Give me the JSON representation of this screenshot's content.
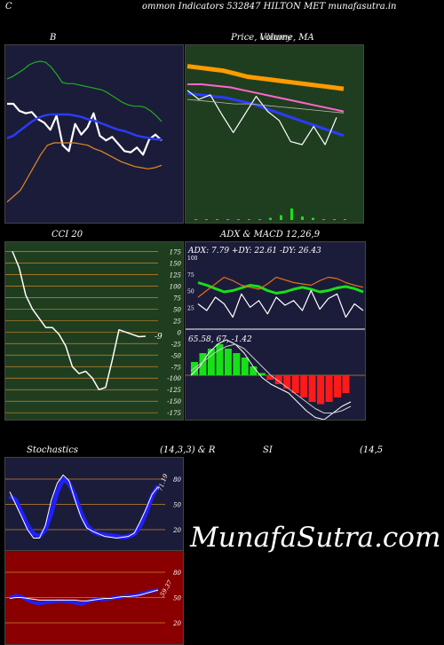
{
  "header": {
    "left_char": "C",
    "title": "ommon  Indicators 532847 HILTON  MET munafasutra.in"
  },
  "watermark": "MunafaSutra.com",
  "colors": {
    "navy_bg": "#1b1c3a",
    "green_bg": "#1f3e1f",
    "red_bg": "#8a0000",
    "grid": "#c8862a"
  },
  "chart_data": [
    {
      "type": "line",
      "name_label": "B",
      "title_right": "",
      "description_words": [],
      "series": [
        {
          "name": "",
          "color": "#1fae1f",
          "values": [
            64,
            66,
            69,
            72,
            76,
            78,
            79,
            78,
            74,
            68,
            61,
            60,
            60,
            59,
            58,
            57,
            56,
            55,
            53,
            50,
            47,
            44,
            42,
            41,
            41,
            40,
            37,
            33,
            28
          ]
        },
        {
          "name": "",
          "color": "#ffffff",
          "values": [
            43,
            43,
            37,
            35,
            36,
            30,
            27,
            21,
            33,
            8,
            3,
            26,
            17,
            23,
            35,
            16,
            12,
            15,
            9,
            3,
            2,
            6,
            0,
            13,
            17,
            12
          ]
        },
        {
          "name": "",
          "color": "#2a3cff",
          "values": [
            14,
            16,
            20,
            24,
            28,
            31,
            33,
            34,
            34,
            34,
            34,
            33,
            32,
            30,
            29,
            27,
            25,
            23,
            21,
            20,
            18,
            16,
            15,
            14,
            13,
            13
          ]
        },
        {
          "name": "",
          "color": "#e08a20",
          "values": [
            -40,
            -35,
            -30,
            -20,
            -10,
            0,
            8,
            10,
            10,
            10,
            10,
            9,
            8,
            5,
            3,
            0,
            -3,
            -6,
            -8,
            -10,
            -11,
            -12,
            -11,
            -9
          ]
        }
      ],
      "yrange": [
        -50,
        85
      ]
    },
    {
      "type": "line",
      "title": "Price, Volume, MA",
      "legend_overlap": "Ulimey",
      "series": [
        {
          "name": "",
          "color": "#ff9a00",
          "values": [
            92,
            91,
            90,
            89,
            87,
            85,
            84,
            83,
            82,
            81,
            80,
            79,
            78,
            77
          ]
        },
        {
          "name": "",
          "color": "#ff66cc",
          "values": [
            80,
            80,
            79,
            78,
            76,
            74,
            72,
            70,
            68,
            66,
            64,
            62
          ]
        },
        {
          "name": "",
          "color": "#2a3cff",
          "values": [
            74,
            73,
            72,
            71,
            69,
            67,
            64,
            61,
            58,
            55,
            52,
            49,
            46
          ]
        },
        {
          "name": "",
          "color": "#ffffff",
          "values": [
            76,
            70,
            73,
            60,
            48,
            60,
            72,
            62,
            56,
            42,
            40,
            52,
            40,
            58
          ]
        }
      ],
      "volume": [
        0,
        0,
        0,
        0,
        0,
        0,
        0,
        1,
        3,
        8,
        2,
        1,
        0,
        0,
        0
      ]
    },
    {
      "type": "line",
      "title": "CCI 20",
      "yticks": [
        175,
        150,
        125,
        100,
        75,
        50,
        25,
        0,
        -25,
        -50,
        -75,
        -100,
        -125,
        -150,
        -175
      ],
      "last_value_label": "-9",
      "values": [
        175,
        140,
        80,
        50,
        30,
        10,
        10,
        -5,
        -30,
        -75,
        -90,
        -85,
        -100,
        -125,
        -120,
        -60,
        5,
        0,
        -5,
        -10,
        -9
      ],
      "ylim": [
        -190,
        195
      ]
    },
    {
      "type": "line",
      "title": "ADX  & MACD 12,26,9",
      "adx_text": "ADX: 7.79 +DY: 22.61 -DY: 26.43",
      "adx_yticks": [
        100,
        75,
        50,
        25
      ],
      "macd_text": "65.58,  67,  -1.42",
      "adx_series": [
        {
          "name": "",
          "color": "#18e018",
          "values": [
            62,
            58,
            53,
            48,
            50,
            54,
            58,
            56,
            50,
            46,
            48,
            52,
            55,
            52,
            48,
            50,
            54,
            56,
            53,
            48
          ]
        },
        {
          "name": "",
          "color": "#e0701a",
          "values": [
            40,
            50,
            60,
            70,
            65,
            58,
            55,
            52,
            60,
            70,
            66,
            62,
            60,
            58,
            65,
            70,
            68,
            62,
            58,
            55
          ]
        },
        {
          "name": "",
          "color": "#ffffff",
          "values": [
            30,
            20,
            40,
            30,
            10,
            45,
            25,
            35,
            15,
            40,
            28,
            35,
            20,
            50,
            22,
            38,
            45,
            10,
            30,
            20
          ]
        }
      ],
      "macd_hist": [
        6,
        10,
        12,
        14,
        12,
        10,
        8,
        4,
        1,
        -2,
        -4,
        -6,
        -8,
        -10,
        -12,
        -13,
        -12,
        -10,
        -8
      ],
      "macd_lines": [
        {
          "name": "",
          "color": "#ffffff",
          "values": [
            0,
            4,
            10,
            14,
            16,
            14,
            10,
            4,
            -1,
            -4,
            -6,
            -8,
            -12,
            -16,
            -19,
            -20,
            -17,
            -14,
            -12
          ]
        },
        {
          "name": "",
          "color": "#cccccc",
          "values": [
            2,
            5,
            8,
            11,
            13,
            14,
            12,
            8,
            4,
            0,
            -3,
            -6,
            -9,
            -12,
            -15,
            -17,
            -17,
            -16,
            -14
          ]
        }
      ]
    },
    {
      "type": "line",
      "title_left": "Stochastics",
      "title_mid": "(14,3,3) & R",
      "title_si": "SI",
      "title_right": "(14,5",
      "yticks": [
        80,
        50,
        20
      ],
      "last_value_label": "71.19",
      "series": [
        {
          "name": "",
          "color": "#2020ff",
          "values": [
            60,
            55,
            40,
            25,
            15,
            12,
            20,
            40,
            65,
            80,
            75,
            60,
            40,
            25,
            18,
            15,
            14,
            13,
            12,
            11,
            12,
            15,
            25,
            40,
            60,
            72
          ]
        },
        {
          "name": "",
          "color": "#ffffff",
          "values": [
            65,
            50,
            35,
            20,
            10,
            10,
            25,
            55,
            75,
            85,
            78,
            55,
            35,
            22,
            18,
            15,
            12,
            11,
            10,
            11,
            12,
            16,
            30,
            45,
            62,
            71
          ]
        }
      ],
      "ylim": [
        0,
        100
      ]
    },
    {
      "type": "line",
      "title": "",
      "yticks": [
        80,
        50,
        20
      ],
      "last_value_label": "59.37",
      "series": [
        {
          "name": "",
          "color": "#2020ff",
          "values": [
            50,
            52,
            51,
            47,
            44,
            43,
            44,
            45,
            46,
            46,
            45,
            44,
            42,
            45,
            47,
            48,
            48,
            49,
            50,
            51,
            52,
            52,
            54,
            56,
            58,
            59
          ]
        },
        {
          "name": "",
          "color": "#ffffff",
          "values": [
            49,
            50,
            50,
            49,
            48,
            47,
            47,
            47,
            47,
            47,
            47,
            47,
            46,
            46,
            47,
            48,
            49,
            49,
            50,
            51,
            51,
            52,
            53,
            55,
            57,
            59
          ]
        }
      ],
      "ylim": [
        0,
        100
      ]
    }
  ]
}
